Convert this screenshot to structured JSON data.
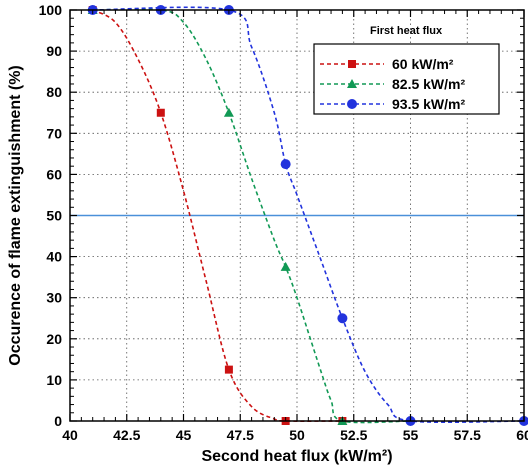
{
  "chart_data": {
    "type": "line",
    "xlabel": "Second  heat  flux  (kW/m²)",
    "ylabel": "Occurence  of  flame  extinguishment  (%)",
    "xlim": [
      40,
      60
    ],
    "ylim": [
      0,
      100
    ],
    "x_ticks": [
      "40",
      "42.5",
      "45",
      "47.5",
      "50",
      "52.5",
      "55",
      "57.5",
      "60"
    ],
    "y_ticks": [
      "0",
      "10",
      "20",
      "30",
      "40",
      "50",
      "60",
      "70",
      "80",
      "90",
      "100"
    ],
    "legend_title": "First  heat  flux",
    "legend_position": "top-right",
    "reference_line": {
      "y": 50,
      "color": "#4a90d9"
    },
    "series": [
      {
        "name": "60  kW/m²",
        "color": "#cc1111",
        "marker": "square",
        "points": [
          [
            41,
            100
          ],
          [
            44,
            75
          ],
          [
            47,
            12.5
          ],
          [
            49.5,
            0
          ],
          [
            52,
            0
          ]
        ],
        "curve": [
          [
            41,
            100
          ],
          [
            42,
            97
          ],
          [
            43,
            88
          ],
          [
            44,
            75
          ],
          [
            45,
            56
          ],
          [
            46,
            34
          ],
          [
            47,
            12.5
          ],
          [
            48,
            3.5
          ],
          [
            49,
            0.5
          ],
          [
            49.5,
            0
          ],
          [
            52,
            0
          ]
        ]
      },
      {
        "name": "82.5  kW/m²",
        "color": "#119955",
        "marker": "triangle",
        "points": [
          [
            41,
            100
          ],
          [
            47,
            75
          ],
          [
            49.5,
            37.5
          ],
          [
            52,
            0
          ]
        ],
        "curve": [
          [
            41,
            100
          ],
          [
            44,
            100
          ],
          [
            45,
            97
          ],
          [
            46,
            88
          ],
          [
            47,
            75
          ],
          [
            48,
            59
          ],
          [
            49,
            44
          ],
          [
            49.5,
            37.5
          ],
          [
            50,
            30
          ],
          [
            51,
            13
          ],
          [
            51.5,
            5
          ],
          [
            52,
            0
          ],
          [
            55,
            0
          ]
        ]
      },
      {
        "name": "93.5  kW/m²",
        "color": "#2233dd",
        "marker": "circle",
        "points": [
          [
            41,
            100
          ],
          [
            44,
            100
          ],
          [
            47,
            100
          ],
          [
            49.5,
            62.5
          ],
          [
            52,
            25
          ],
          [
            55,
            0
          ],
          [
            60,
            0
          ]
        ],
        "curve": [
          [
            41,
            100
          ],
          [
            47,
            100
          ],
          [
            48,
            91
          ],
          [
            49,
            75
          ],
          [
            49.5,
            62.5
          ],
          [
            50,
            55
          ],
          [
            51,
            40
          ],
          [
            52,
            25
          ],
          [
            53,
            12
          ],
          [
            54,
            4
          ],
          [
            55,
            0
          ],
          [
            60,
            0
          ]
        ]
      }
    ]
  }
}
